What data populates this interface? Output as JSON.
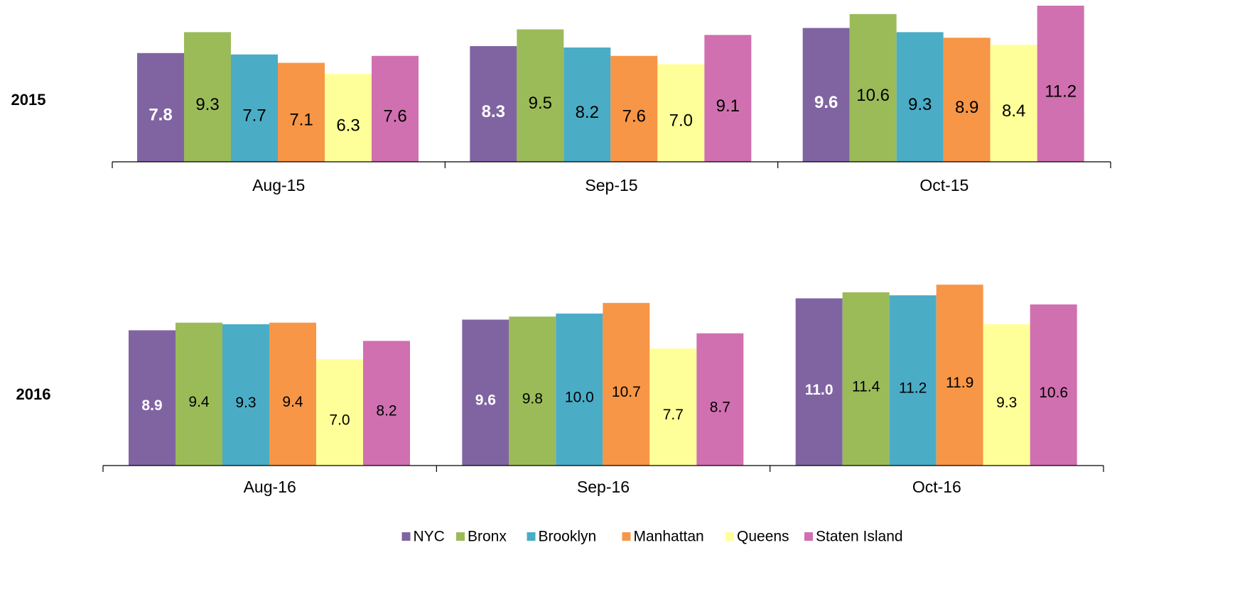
{
  "chart_data": [
    {
      "type": "bar",
      "title": "2015",
      "categories": [
        "Aug-15",
        "Sep-15",
        "Oct-15"
      ],
      "ylim": [
        0,
        11.2
      ],
      "series": [
        {
          "name": "NYC",
          "color": "#8064a2",
          "values": [
            7.8,
            8.3,
            9.6
          ]
        },
        {
          "name": "Bronx",
          "color": "#9bbb59",
          "values": [
            9.3,
            9.5,
            10.6
          ]
        },
        {
          "name": "Brooklyn",
          "color": "#4bacc6",
          "values": [
            7.7,
            8.2,
            9.3
          ]
        },
        {
          "name": "Manhattan",
          "color": "#f79646",
          "values": [
            7.1,
            7.6,
            8.9
          ]
        },
        {
          "name": "Queens",
          "color": "#ffff99",
          "values": [
            6.3,
            7.0,
            8.4
          ]
        },
        {
          "name": "Staten Island",
          "color": "#d070b0",
          "values": [
            7.6,
            9.1,
            11.2
          ]
        }
      ],
      "value_labels": [
        [
          "7.8",
          "8.3",
          "9.6"
        ],
        [
          "9.3",
          "9.5",
          "10.6"
        ],
        [
          "7.7",
          "8.2",
          "9.3"
        ],
        [
          "7.1",
          "7.6",
          "8.9"
        ],
        [
          "6.3",
          "7.0",
          "8.4"
        ],
        [
          "7.6",
          "9.1",
          "11.2"
        ]
      ]
    },
    {
      "type": "bar",
      "title": "2016",
      "categories": [
        "Aug-16",
        "Sep-16",
        "Oct-16"
      ],
      "ylim": [
        0,
        12
      ],
      "series": [
        {
          "name": "NYC",
          "color": "#8064a2",
          "values": [
            8.9,
            9.6,
            11.0
          ]
        },
        {
          "name": "Bronx",
          "color": "#9bbb59",
          "values": [
            9.4,
            9.8,
            11.4
          ]
        },
        {
          "name": "Brooklyn",
          "color": "#4bacc6",
          "values": [
            9.3,
            10.0,
            11.2
          ]
        },
        {
          "name": "Manhattan",
          "color": "#f79646",
          "values": [
            9.4,
            10.7,
            11.9
          ]
        },
        {
          "name": "Queens",
          "color": "#ffff99",
          "values": [
            7.0,
            7.7,
            9.3
          ]
        },
        {
          "name": "Staten Island",
          "color": "#d070b0",
          "values": [
            8.2,
            8.7,
            10.6
          ]
        }
      ],
      "value_labels": [
        [
          "8.9",
          "9.6",
          "11.0"
        ],
        [
          "9.4",
          "9.8",
          "11.4"
        ],
        [
          "9.3",
          "10.0",
          "11.2"
        ],
        [
          "9.4",
          "10.7",
          "11.9"
        ],
        [
          "7.0",
          "7.7",
          "9.3"
        ],
        [
          "8.2",
          "8.7",
          "10.6"
        ]
      ]
    }
  ]
}
